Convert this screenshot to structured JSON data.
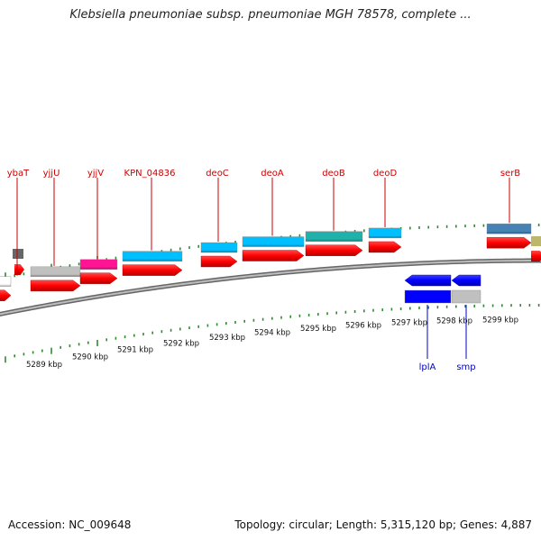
{
  "title": "Klebsiella pneumoniae subsp. pneumoniae MGH 78578, complete ...",
  "footer": {
    "accession": "Accession: NC_009648",
    "info": "Topology: circular; Length: 5,315,120 bp; Genes: 4,887"
  },
  "colors": {
    "forward_cds": "#ff0000",
    "reverse_cds": "#0000ff",
    "backbone": "#888888",
    "ticks": "#2e8b2e",
    "forward_label": "#cc0000",
    "reverse_label": "#0000cc"
  },
  "axis": {
    "unit": "kbp",
    "scale_labels": [
      "5289 kbp",
      "5290 kbp",
      "5291 kbp",
      "5292 kbp",
      "5293 kbp",
      "5294 kbp",
      "5295 kbp",
      "5296 kbp",
      "5297 kbp",
      "5298 kbp",
      "5299 kbp"
    ]
  },
  "genes_forward": [
    {
      "name": "ybaT",
      "gene_color": "#ffffff"
    },
    {
      "name": "yjjU",
      "gene_color": "#c0c0c0"
    },
    {
      "name": "yjjV",
      "gene_color": "#ff1493"
    },
    {
      "name": "KPN_04836",
      "gene_color": "#00bfff"
    },
    {
      "name": "deoC",
      "gene_color": "#00bfff"
    },
    {
      "name": "deoA",
      "gene_color": "#00bfff"
    },
    {
      "name": "deoB",
      "gene_color": "#20b2aa"
    },
    {
      "name": "deoD",
      "gene_color": "#00bfff"
    },
    {
      "name": "serB",
      "gene_color": "#4682b4"
    }
  ],
  "genes_reverse": [
    {
      "name": "lplA",
      "gene_color": "#0000ff"
    },
    {
      "name": "smp",
      "gene_color": "#c0c0c0"
    }
  ]
}
